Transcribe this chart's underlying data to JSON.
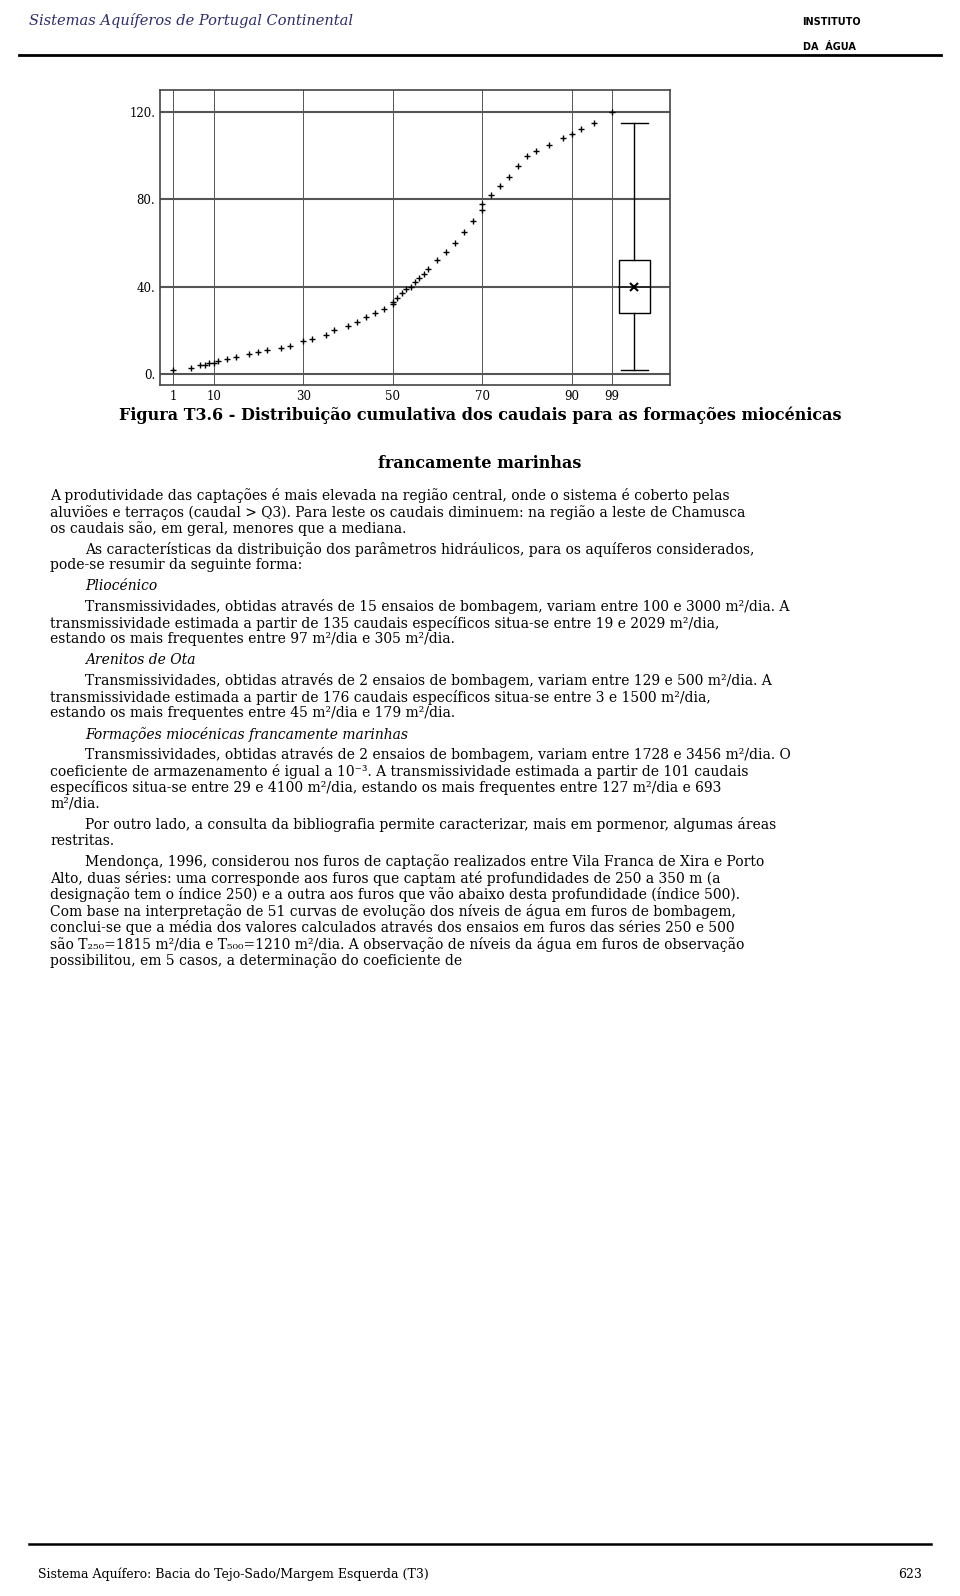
{
  "header_text": "Sistemas Aquíferos de Portugal Continental",
  "footer_text": "Sistema Aquífero: Bacia do Tejo-Sado/Margem Esquerda (T3)",
  "footer_page": "623",
  "figure_caption_line1": "Figura T3.6 - Distribuição cumulativa dos caudais para as formações miocénicas",
  "figure_caption_line2": "francamente marinhas",
  "chart_yticks": [
    0,
    40,
    80,
    120
  ],
  "chart_xticks": [
    1,
    10,
    30,
    50,
    70,
    90,
    99
  ],
  "background_color": "#ffffff",
  "scatter_data_x": [
    1,
    5,
    7,
    8,
    9,
    10,
    11,
    13,
    15,
    18,
    20,
    22,
    25,
    27,
    30,
    32,
    35,
    37,
    40,
    42,
    44,
    46,
    48,
    50,
    50,
    51,
    52,
    53,
    54,
    55,
    56,
    57,
    58,
    60,
    62,
    64,
    66,
    68,
    70,
    70,
    72,
    74,
    76,
    78,
    80,
    82,
    85,
    88,
    90,
    92,
    95,
    99
  ],
  "scatter_data_y": [
    2,
    3,
    4,
    4,
    5,
    5,
    6,
    7,
    8,
    9,
    10,
    11,
    12,
    13,
    15,
    16,
    18,
    20,
    22,
    24,
    26,
    28,
    30,
    32,
    33,
    35,
    37,
    39,
    40,
    42,
    44,
    46,
    48,
    52,
    56,
    60,
    65,
    70,
    75,
    78,
    82,
    86,
    90,
    95,
    100,
    102,
    105,
    108,
    110,
    112,
    115,
    120
  ],
  "boxplot_q1": 28,
  "boxplot_median": 40,
  "boxplot_q3": 52,
  "boxplot_whisker_low": 2,
  "boxplot_whisker_high": 115,
  "boxplot_mean": 40,
  "body_paragraphs": [
    {
      "text": "A produtividade das captações é mais elevada na região central, onde o sistema é coberto pelas aluviões e terraços (caudal > Q3). Para leste os caudais diminuem: na região a leste de Chamusca os caudais são, em geral, menores que a mediana.",
      "first_indent": false,
      "style": "normal",
      "space_before": 0.0
    },
    {
      "text": "As características da distribuição dos parâmetros hidráulicos, para os aquíferos considerados, pode-se resumir da seguinte forma:",
      "first_indent": true,
      "style": "normal",
      "space_before": 0.5
    },
    {
      "text": "Pliocénico",
      "first_indent": true,
      "style": "italic",
      "space_before": 0.5
    },
    {
      "text": "Transmissividades, obtidas através de 15 ensaios de bombagem, variam entre 100 e 3000 m²/dia. A transmissividade estimada a partir de 135 caudais específicos situa-se entre 19 e 2029 m²/dia, estando os mais frequentes entre 97 m²/dia e 305 m²/dia.",
      "first_indent": true,
      "style": "normal",
      "space_before": 0.5
    },
    {
      "text": "Arenitos de Ota",
      "first_indent": true,
      "style": "italic",
      "space_before": 0.5
    },
    {
      "text": "Transmissividades, obtidas através de 2 ensaios de bombagem, variam entre 129 e 500 m²/dia. A transmissividade estimada a partir de 176 caudais específicos situa-se entre 3 e 1500 m²/dia, estando os mais frequentes entre 45 m²/dia e 179 m²/dia.",
      "first_indent": true,
      "style": "normal",
      "space_before": 0.5
    },
    {
      "text": "Formações miocénicas francamente marinhas",
      "first_indent": true,
      "style": "italic",
      "space_before": 0.5
    },
    {
      "text": "Transmissividades, obtidas através de 2 ensaios de bombagem, variam entre 1728 e 3456 m²/dia. O coeficiente de armazenamento é igual a 10⁻³. A transmissividade estimada a partir de 101 caudais específicos situa-se entre 29 e 4100 m²/dia, estando os mais frequentes entre 127 m²/dia e 693 m²/dia.",
      "first_indent": true,
      "style": "normal",
      "space_before": 0.5
    },
    {
      "text": "Por outro lado, a consulta da bibliografia permite caracterizar, mais em pormenor, algumas áreas restritas.",
      "first_indent": true,
      "style": "normal",
      "space_before": 0.5
    },
    {
      "text": "Mendonça, 1996, considerou nos furos de captação realizados entre Vila Franca de Xira e Porto Alto, duas séries: uma corresponde aos furos que captam até profundidades de 250 a 350 m (a designação tem o índice 250) e a outra aos furos que vão abaixo desta profundidade (índice 500). Com base na interpretação de 51 curvas de evolução dos níveis de água em furos de bombagem, conclui-se que a média dos valores calculados através dos ensaios em furos das séries 250 e 500 são T₂₅₀=1815 m²/dia e T₅₀₀=1210 m²/dia. A observação de níveis da água em furos de observação possibilitou, em 5 casos, a determinação do coeficiente de",
      "first_indent": true,
      "style": "normal",
      "space_before": 0.5
    }
  ]
}
